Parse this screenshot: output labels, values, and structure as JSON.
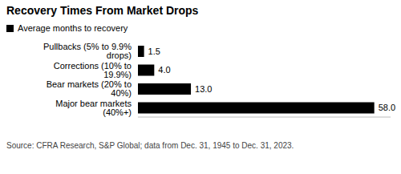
{
  "chart_data": {
    "type": "bar",
    "title": "Recovery Times From Market Drops",
    "categories": [
      "Pullbacks (5% to 9.9% drops)",
      "Corrections (10% to 19.9%)",
      "Bear markets (20% to 40%)",
      "Major bear markets (40%+)"
    ],
    "series": [
      {
        "name": "Average months to recovery",
        "color": "#000000",
        "values": [
          1.5,
          4.0,
          13.0,
          58.0
        ],
        "value_labels": [
          "1.5",
          "4.0",
          "13.0",
          "58.0"
        ]
      }
    ],
    "orientation": "horizontal",
    "data_labels": true,
    "xlim": [
      0,
      62
    ],
    "xticks": [
      0,
      62
    ],
    "tick_labels": "y",
    "legend": "upper left",
    "source": "Source: CFRA Research, S&P Global; data from Dec. 31, 1945 to Dec. 31, 2023."
  }
}
